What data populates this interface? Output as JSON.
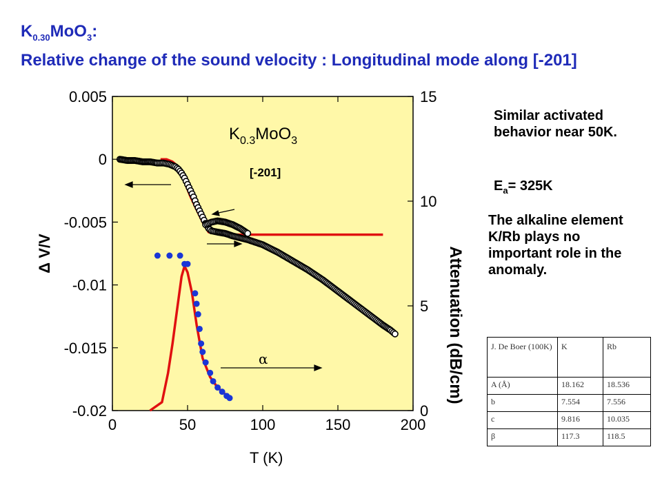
{
  "slide": {
    "formula_title": {
      "base": "K",
      "sub1": "0.30",
      "mid": "MoO",
      "sub2": "3",
      "tail": ":"
    },
    "subtitle": "Relative change of the sound velocity : Longitudinal mode  along [-201]"
  },
  "notes": {
    "activated": "Similar activated behavior near 50K.",
    "ea": {
      "base": "E",
      "sub": "a",
      "rest": "= 325K"
    },
    "alkaline": "The alkaline element  K/Rb plays no important role in the anomaly."
  },
  "table": {
    "header": [
      "J. De Boer (100K)",
      "K",
      "Rb"
    ],
    "rows": [
      [
        "A (Å)",
        "18.162",
        "18.536"
      ],
      [
        "b",
        "7.554",
        "7.556"
      ],
      [
        "c",
        "9.816",
        "10.035"
      ],
      [
        "β",
        "117.3",
        "118.5"
      ]
    ]
  },
  "colors": {
    "title": "#1f2bb8",
    "plot_bg": "#fff8a8",
    "fit": "#e01010",
    "attenuation_points": "#1a36d6",
    "velocity_points": "#000000"
  },
  "chart_data": {
    "type": "scatter",
    "xlabel": "T  (K)",
    "ylabel_left": "Δ V/V",
    "ylabel_right": "Attenuation  (dB/cm)",
    "xlim": [
      0,
      200
    ],
    "ylim_left": [
      -0.02,
      0.005
    ],
    "ylim_right": [
      0,
      15
    ],
    "x_ticks": [
      "0",
      "50",
      "100",
      "150",
      "200"
    ],
    "y_ticks_left": [
      "0.005",
      "0",
      "-0.005",
      "-0.01",
      "-0.015",
      "-0.02"
    ],
    "y_ticks_right": [
      "15",
      "10",
      "5",
      "0"
    ],
    "annotations": {
      "compound": {
        "base": "K",
        "sub1": "0.3",
        "mid": "MoO",
        "sub2": "3"
      },
      "direction": "[-201]",
      "alpha": "α"
    },
    "series": [
      {
        "axis": "left",
        "kind": "points",
        "x": [
          5,
          10,
          15,
          20,
          25,
          30,
          34,
          38,
          40,
          42,
          44,
          46,
          48,
          50,
          52,
          54,
          56,
          58,
          60,
          62,
          64,
          66,
          70,
          75,
          80,
          90,
          100,
          110,
          120,
          130,
          140,
          150,
          160,
          170,
          180,
          185,
          188
        ],
        "y": [
          0.0,
          -0.0001,
          -0.0001,
          -0.0002,
          -0.0002,
          -0.0003,
          -0.0003,
          -0.0004,
          -0.0005,
          -0.0006,
          -0.0008,
          -0.0011,
          -0.0015,
          -0.002,
          -0.0025,
          -0.003,
          -0.0036,
          -0.0041,
          -0.0046,
          -0.0051,
          -0.0055,
          -0.0057,
          -0.0058,
          -0.0059,
          -0.0061,
          -0.0064,
          -0.0068,
          -0.0074,
          -0.0081,
          -0.0088,
          -0.0096,
          -0.0105,
          -0.0114,
          -0.0123,
          -0.0132,
          -0.0136,
          -0.0139
        ]
      },
      {
        "axis": "left",
        "kind": "points",
        "x": [
          62,
          66,
          70,
          75,
          80,
          85,
          90
        ],
        "y": [
          -0.0052,
          -0.005,
          -0.0049,
          -0.005,
          -0.0052,
          -0.0055,
          -0.0059
        ]
      },
      {
        "axis": "left",
        "kind": "line",
        "x": [
          32,
          36,
          40,
          42,
          44,
          46,
          48,
          50,
          52,
          56,
          60,
          64,
          68,
          72,
          80,
          100,
          120,
          140,
          160,
          180
        ],
        "y": [
          0.0,
          0.0,
          -0.0002,
          -0.0004,
          -0.0008,
          -0.0013,
          -0.0018,
          -0.0024,
          -0.003,
          -0.004,
          -0.005,
          -0.0058,
          -0.0059,
          -0.006,
          -0.006,
          -0.006,
          -0.006,
          -0.006,
          -0.006,
          -0.006
        ]
      },
      {
        "axis": "right",
        "kind": "points",
        "x": [
          30,
          38,
          45,
          48,
          50,
          55,
          56,
          57,
          58,
          59,
          60,
          62,
          65,
          67,
          70,
          73,
          76,
          78
        ],
        "y": [
          7.4,
          7.4,
          7.4,
          7.0,
          7.0,
          5.6,
          5.1,
          4.6,
          3.9,
          3.2,
          2.8,
          2.3,
          1.8,
          1.4,
          1.1,
          0.9,
          0.7,
          0.6
        ]
      },
      {
        "axis": "right",
        "kind": "line",
        "x": [
          25,
          33,
          37,
          40,
          43,
          46,
          48,
          50,
          53,
          56,
          60,
          65,
          70,
          78
        ],
        "y": [
          0,
          0.4,
          1.8,
          3.2,
          4.8,
          6.4,
          6.9,
          6.6,
          5.6,
          4.1,
          2.5,
          1.6,
          1.1,
          0.6
        ]
      }
    ]
  }
}
